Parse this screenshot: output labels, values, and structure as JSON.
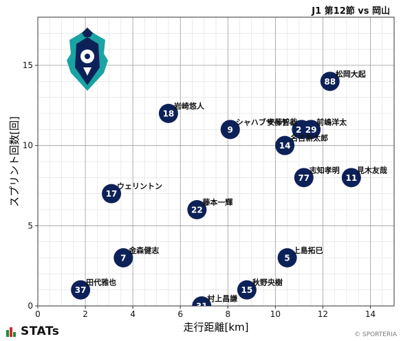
{
  "header": {
    "match": "J1 第12節 vs 岡山"
  },
  "footer": {
    "brand": "STATs",
    "copyright": "© SPORTERIA"
  },
  "colors": {
    "marker": "#0d2159",
    "grid_major": "#999999",
    "grid_minor": "#dddddd",
    "crest_teal": "#1aa3a3",
    "crest_navy": "#0d2159"
  },
  "chart_data": {
    "type": "scatter",
    "title": "",
    "xlabel": "走行距離[km]",
    "ylabel": "スプリント回数[回]",
    "xlim": [
      0,
      15
    ],
    "ylim": [
      0,
      18
    ],
    "xticks": [
      0,
      2,
      4,
      6,
      8,
      10,
      12,
      14
    ],
    "yticks": [
      0,
      5,
      10,
      15
    ],
    "grid": true,
    "points": [
      {
        "number": "88",
        "name": "松岡大起",
        "x": 12.3,
        "y": 14
      },
      {
        "number": "18",
        "name": "岩崎悠人",
        "x": 5.5,
        "y": 12
      },
      {
        "number": "9",
        "name": "シャハブザヘディ",
        "x": 8.1,
        "y": 11
      },
      {
        "number": "20",
        "name": "安藤智哉",
        "x": 11.1,
        "y": 11
      },
      {
        "number": "29",
        "name": "前嶋洋太",
        "x": 11.5,
        "y": 11
      },
      {
        "number": "14",
        "name": "名古新太郎",
        "x": 10.4,
        "y": 10
      },
      {
        "number": "77",
        "name": "志知孝明",
        "x": 11.2,
        "y": 8
      },
      {
        "number": "11",
        "name": "見木友哉",
        "x": 13.2,
        "y": 8
      },
      {
        "number": "17",
        "name": "ウェリントン",
        "x": 3.1,
        "y": 7
      },
      {
        "number": "22",
        "name": "藤本一輝",
        "x": 6.7,
        "y": 6
      },
      {
        "number": "7",
        "name": "金森健志",
        "x": 3.6,
        "y": 3
      },
      {
        "number": "5",
        "name": "上島拓巳",
        "x": 10.5,
        "y": 3
      },
      {
        "number": "37",
        "name": "田代雅也",
        "x": 1.8,
        "y": 1
      },
      {
        "number": "15",
        "name": "秋野央樹",
        "x": 8.8,
        "y": 1
      },
      {
        "number": "31",
        "name": "村上昌謙",
        "x": 6.9,
        "y": 0
      }
    ]
  }
}
